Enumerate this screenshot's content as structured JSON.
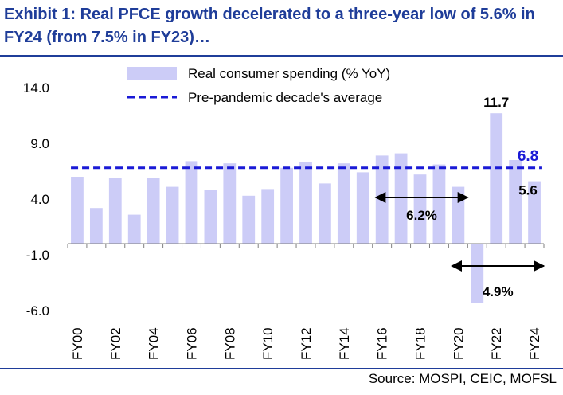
{
  "title": "Exhibit 1: Real PFCE growth decelerated to a three-year low of 5.6% in FY24 (from 7.5% in FY23)…",
  "source": "Source: MOSPI, CEIC, MOFSL",
  "colors": {
    "bar": "#ccccf7",
    "avg_line": "#1a1ad6",
    "title": "#1f3d99",
    "axis": "#808080"
  },
  "chart_data": {
    "type": "bar",
    "categories": [
      "FY00",
      "FY01",
      "FY02",
      "FY03",
      "FY04",
      "FY05",
      "FY06",
      "FY07",
      "FY08",
      "FY09",
      "FY10",
      "FY11",
      "FY12",
      "FY13",
      "FY14",
      "FY15",
      "FY16",
      "FY17",
      "FY18",
      "FY19",
      "FY20",
      "FY21",
      "FY22",
      "FY23",
      "FY24"
    ],
    "tick_labels": [
      "FY00",
      "",
      "FY02",
      "",
      "FY04",
      "",
      "FY06",
      "",
      "FY08",
      "",
      "FY10",
      "",
      "FY12",
      "",
      "FY14",
      "",
      "FY16",
      "",
      "FY18",
      "",
      "FY20",
      "",
      "FY22",
      "",
      "FY24"
    ],
    "series": [
      {
        "name": "Real consumer spending (% YoY)",
        "type": "bar",
        "values": [
          6.0,
          3.2,
          5.9,
          2.6,
          5.9,
          5.1,
          7.4,
          4.8,
          7.2,
          4.3,
          4.9,
          6.8,
          7.3,
          5.4,
          7.2,
          6.4,
          7.9,
          8.1,
          6.2,
          7.1,
          5.1,
          -5.3,
          11.7,
          7.5,
          5.6
        ]
      },
      {
        "name": "Pre-pandemic decade's average",
        "type": "line",
        "value": 6.8
      }
    ],
    "yticks": [
      "14.0",
      "9.0",
      "4.0",
      "-1.0",
      "-6.0"
    ],
    "ylim": [
      -6,
      14
    ],
    "data_labels": [
      "11.7",
      "6.8",
      "5.6"
    ],
    "annotations": [
      {
        "text": "6.2%",
        "from": "FY16",
        "to": "FY20"
      },
      {
        "text": "4.9%",
        "from": "FY20",
        "to": "FY24"
      }
    ],
    "legend_position": "top",
    "grid": false
  }
}
